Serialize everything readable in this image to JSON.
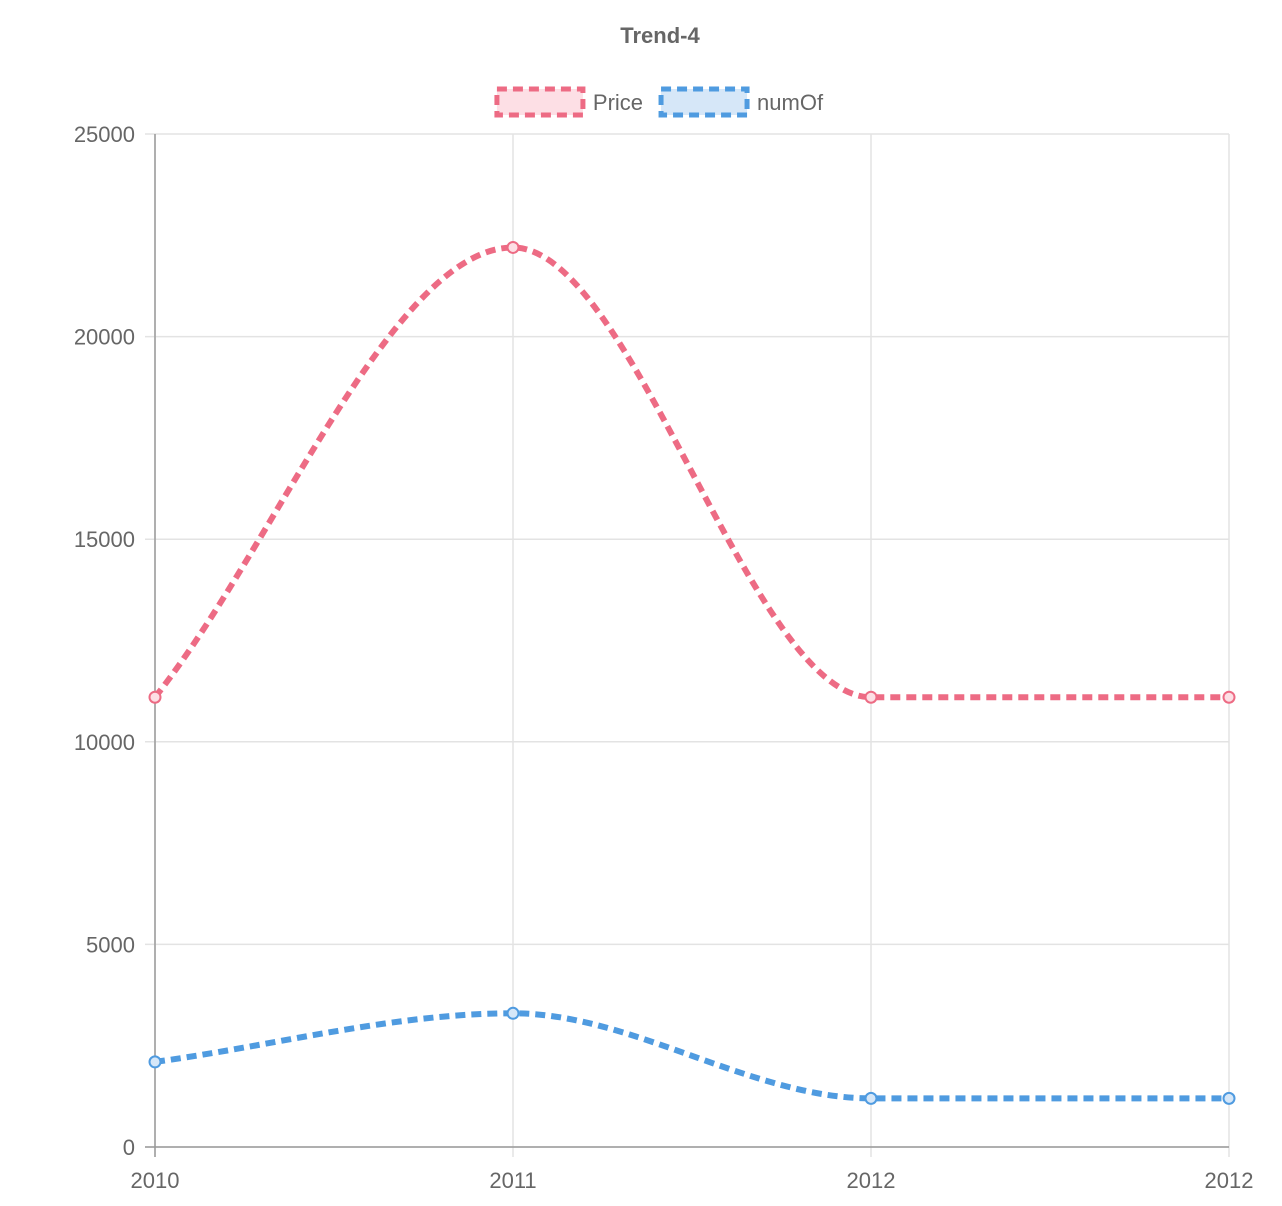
{
  "chart_data": {
    "type": "line",
    "title": "Trend-4",
    "xlabel": "",
    "ylabel": "",
    "categories": [
      "2010",
      "2011",
      "2012",
      "2012"
    ],
    "ylim": [
      0,
      25000
    ],
    "yticks": [
      "0",
      "5000",
      "10000",
      "15000",
      "20000",
      "25000"
    ],
    "grid": true,
    "legend_position": "top",
    "series": [
      {
        "name": "Price",
        "values": [
          11100,
          22200,
          11100,
          11100
        ],
        "color": "#ed6b84",
        "fill": "#fddfe5",
        "line_style": "dashed"
      },
      {
        "name": "numOf",
        "values": [
          2100,
          3300,
          1200,
          1200
        ],
        "color": "#4f9be0",
        "fill": "#d6e7f8",
        "line_style": "dashed"
      }
    ]
  }
}
